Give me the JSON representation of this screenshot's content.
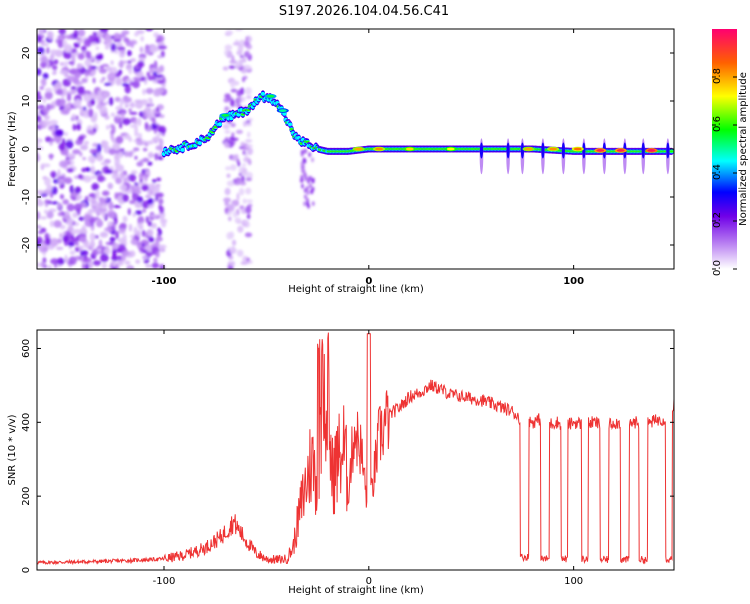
{
  "title": "S197.2026.104.04.56.C41",
  "chart_data": [
    {
      "type": "heatmap",
      "xlabel": "Height of straight line (km)",
      "ylabel": "Frequency (Hz)",
      "xlim": [
        -162,
        149
      ],
      "ylim": [
        -25,
        25
      ],
      "x_ticks": [
        -100,
        0,
        100
      ],
      "y_ticks": [
        20,
        10,
        0,
        -10,
        -20
      ],
      "colorbar": {
        "label": "Normalized spectral amplitude",
        "range": [
          0,
          1
        ],
        "ticks": [
          "0.0",
          "0.2",
          "0.4",
          "0.6",
          "0.8"
        ],
        "tick_values": [
          0.0,
          0.2,
          0.4,
          0.6,
          0.8
        ],
        "stops": [
          {
            "v": 0.0,
            "color": "#ffffff"
          },
          {
            "v": 0.12,
            "color": "#b070f0"
          },
          {
            "v": 0.22,
            "color": "#7000e8"
          },
          {
            "v": 0.32,
            "color": "#0000ff"
          },
          {
            "v": 0.45,
            "color": "#00ffff"
          },
          {
            "v": 0.58,
            "color": "#00ff00"
          },
          {
            "v": 0.72,
            "color": "#ffff00"
          },
          {
            "v": 0.86,
            "color": "#ff6000"
          },
          {
            "v": 1.0,
            "color": "#ff0070"
          }
        ]
      },
      "trace": {
        "x": [
          -100,
          -90,
          -80,
          -72,
          -60,
          -52,
          -45,
          -40,
          -35,
          -30,
          -25,
          -20,
          -10,
          0,
          20,
          40,
          60,
          80,
          100,
          120,
          149
        ],
        "y": [
          -0.5,
          0.5,
          2,
          6,
          8,
          11,
          10,
          6,
          2,
          1,
          0,
          -0.5,
          -0.5,
          0,
          0,
          0,
          0,
          0,
          -0.5,
          -0.5,
          -0.5
        ]
      }
    },
    {
      "type": "line",
      "xlabel": "Height of straight line (km)",
      "ylabel": "SNR (10 * v/v)",
      "xlim": [
        -162,
        149
      ],
      "ylim": [
        0,
        650
      ],
      "x_ticks": [
        -100,
        0,
        100
      ],
      "y_ticks": [
        0,
        200,
        400,
        600
      ],
      "series": [
        {
          "name": "SNR",
          "color": "#ee3333",
          "x": [
            -162,
            -140,
            -120,
            -100,
            -90,
            -80,
            -72,
            -66,
            -60,
            -55,
            -50,
            -45,
            -40,
            -37,
            -34,
            -30,
            -28,
            -25,
            -22,
            -20,
            -18,
            -15,
            -12,
            -10,
            -7,
            -4,
            0,
            5,
            10,
            15,
            20,
            25,
            30,
            35,
            40,
            45,
            50,
            55,
            60,
            65,
            70,
            72,
            74,
            78,
            80,
            84,
            88,
            92,
            96,
            100,
            105,
            110,
            115,
            120,
            125,
            130,
            135,
            140,
            145,
            149
          ],
          "y": [
            20,
            22,
            25,
            30,
            40,
            60,
            90,
            130,
            80,
            45,
            30,
            28,
            30,
            60,
            150,
            250,
            300,
            240,
            520,
            480,
            250,
            300,
            330,
            220,
            380,
            330,
            150,
            360,
            420,
            440,
            470,
            480,
            500,
            490,
            475,
            470,
            465,
            460,
            450,
            440,
            430,
            420,
            410,
            405,
            400,
            410,
            395,
            400,
            390,
            400,
            395,
            400,
            390,
            400,
            395,
            400,
            395,
            405,
            410,
            450
          ]
        }
      ],
      "dropouts": [
        {
          "x0": 74,
          "x1": 78,
          "y": 35
        },
        {
          "x0": 84,
          "x1": 88,
          "y": 30
        },
        {
          "x0": 94,
          "x1": 97,
          "y": 30
        },
        {
          "x0": 104,
          "x1": 107,
          "y": 30
        },
        {
          "x0": 113,
          "x1": 117,
          "y": 28
        },
        {
          "x0": 123,
          "x1": 127,
          "y": 28
        },
        {
          "x0": 132,
          "x1": 136,
          "y": 28
        },
        {
          "x0": 145,
          "x1": 148,
          "y": 30
        }
      ]
    }
  ]
}
